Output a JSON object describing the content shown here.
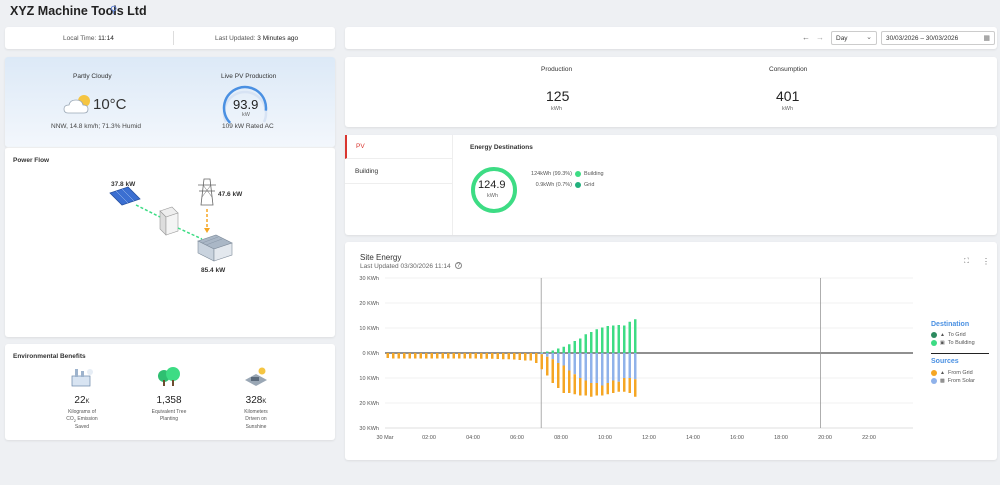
{
  "header": {
    "title": "XYZ Machine Tools Ltd",
    "search_icon": "search-icon"
  },
  "time_bar": {
    "local_time_label": "Local Time:",
    "local_time": "11:14",
    "updated_label": "Last Updated:",
    "updated_value": "3 Minutes ago"
  },
  "controls": {
    "prev": "←",
    "next": "→",
    "period": "Day",
    "date_range": "30/03/2026 – 30/03/2026"
  },
  "weather": {
    "condition": "Partly Cloudy",
    "temp": "10°C",
    "details": "NNW, 14.8 km/h; 71.3% Humid"
  },
  "pv": {
    "title": "Live PV Production",
    "value": "93.9",
    "unit": "kW",
    "rated": "109 kW Rated AC",
    "gauge_fraction": 0.86
  },
  "totals": {
    "production_label": "Production",
    "production_value": "125",
    "production_unit": "kWh",
    "consumption_label": "Consumption",
    "consumption_value": "401",
    "consumption_unit": "kWh"
  },
  "power_flow": {
    "title": "Power Flow",
    "solar": "37.8 kW",
    "grid": "47.6 kW",
    "building": "85.4 kW"
  },
  "tabs": {
    "pv": "PV",
    "building": "Building"
  },
  "destinations": {
    "title": "Energy Destinations",
    "value": "124.9",
    "unit": "kWh",
    "items": [
      {
        "text": "124kWh (99.3%)",
        "label": "Building",
        "color": "#3ddc84"
      },
      {
        "text": "0.9kWh (0.7%)",
        "label": "Grid",
        "color": "#22b07d"
      }
    ]
  },
  "benefits": {
    "title": "Environmental Benefits",
    "items": [
      {
        "value": "22",
        "suffix": "K",
        "line1": "Kilograms of",
        "line2": "CO",
        "sub": "2",
        "line2b": " Emission",
        "line3": "Saved",
        "icon": "factory-icon"
      },
      {
        "value": "1,358",
        "suffix": "",
        "line1": "Equivalent Tree",
        "line2": "Planting",
        "sub": "",
        "line2b": "",
        "line3": "",
        "icon": "trees-icon"
      },
      {
        "value": "328",
        "suffix": "K",
        "line1": "Kilometers",
        "line2": "Driven on",
        "sub": "",
        "line2b": "",
        "line3": "Sunshine",
        "icon": "car-icon"
      }
    ]
  },
  "site_energy": {
    "title": "Site Energy",
    "updated": "Last Updated 03/30/2026 11:14",
    "legend": {
      "destination_title": "Destination",
      "to_grid": "To Grid",
      "to_building": "To Building",
      "sources_title": "Sources",
      "from_grid": "From Grid",
      "from_solar": "From Solar"
    }
  },
  "chart_data": {
    "type": "bar",
    "title": "Site Energy",
    "y_ticks": [
      "30 KWh",
      "20 KWh",
      "10 KWh",
      "0 KWh",
      "10 KWh",
      "20 KWh",
      "30 KWh"
    ],
    "ylim": [
      -30,
      30
    ],
    "x_ticks": [
      "30 Mar",
      "02:00",
      "04:00",
      "06:00",
      "08:00",
      "10:00",
      "12:00",
      "14:00",
      "16:00",
      "18:00",
      "20:00",
      "22:00"
    ],
    "x_tick_hours": [
      0,
      2,
      4,
      6,
      8,
      10,
      12,
      14,
      16,
      18,
      20,
      22
    ],
    "xlim": [
      0,
      24
    ],
    "vertical_markers_hours": [
      7.1,
      19.8
    ],
    "interval_hours": 0.25,
    "colors": {
      "to_grid": "#2d8a5f",
      "to_building": "#3ddc84",
      "from_grid": "#f5a623",
      "from_solar": "#8fb2ea"
    },
    "series": [
      {
        "name": "To Building",
        "values": [
          0,
          0,
          0,
          0,
          0,
          0,
          0,
          0,
          0,
          0,
          0,
          0,
          0,
          0,
          0,
          0,
          0,
          0,
          0,
          0,
          0,
          0,
          0,
          0,
          0,
          0,
          0,
          0,
          0.2,
          0.6,
          1.0,
          1.8,
          2.5,
          3.5,
          4.8,
          5.8,
          7.5,
          8.4,
          9.5,
          10.2,
          10.8,
          11.0,
          11.2,
          11.0,
          12.5,
          13.5
        ]
      },
      {
        "name": "From Grid",
        "values": [
          -2.0,
          -2.2,
          -2.2,
          -2.2,
          -2.2,
          -2.2,
          -2.2,
          -2.2,
          -2.2,
          -2.2,
          -2.2,
          -2.2,
          -2.2,
          -2.2,
          -2.2,
          -2.2,
          -2.2,
          -2.3,
          -2.3,
          -2.3,
          -2.4,
          -2.5,
          -2.5,
          -2.6,
          -2.8,
          -3.0,
          -3.0,
          -4.0,
          -6.0,
          -7.5,
          -9.5,
          -10.0,
          -11.0,
          -9.0,
          -8.0,
          -7.0,
          -6.0,
          -5.5,
          -5.0,
          -4.0,
          -4.5,
          -5.0,
          -4.0,
          -5.5,
          -6.0,
          -7.0
        ]
      },
      {
        "name": "From Solar",
        "values": [
          0,
          0,
          0,
          0,
          0,
          0,
          0,
          0,
          0,
          0,
          0,
          0,
          0,
          0,
          0,
          0,
          0,
          0,
          0,
          0,
          0,
          0,
          0,
          0,
          0,
          0,
          0,
          0,
          -0.5,
          -1.5,
          -2.5,
          -4.0,
          -5.0,
          -7.0,
          -8.5,
          -10.0,
          -11.0,
          -12.0,
          -12.0,
          -13.0,
          -12.0,
          -11.0,
          -11.5,
          -10.0,
          -10.0,
          -10.5
        ]
      }
    ]
  }
}
